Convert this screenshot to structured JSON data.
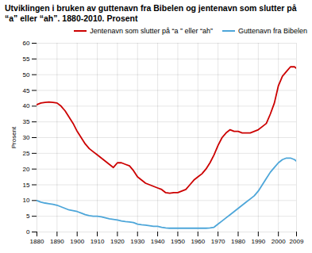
{
  "chart_data": {
    "type": "line",
    "title": "Utviklingen i bruken av guttenavn fra Bibelen og jentenavn som slutter på “a” eller “ah”. 1880-2010. Prosent",
    "y_label": "Prosent",
    "x": [
      1880,
      1882,
      1884,
      1886,
      1888,
      1890,
      1892,
      1894,
      1896,
      1898,
      1900,
      1902,
      1904,
      1906,
      1908,
      1910,
      1912,
      1914,
      1916,
      1918,
      1920,
      1922,
      1924,
      1926,
      1928,
      1930,
      1932,
      1934,
      1936,
      1938,
      1940,
      1942,
      1944,
      1946,
      1948,
      1950,
      1952,
      1954,
      1956,
      1958,
      1960,
      1962,
      1964,
      1966,
      1968,
      1970,
      1972,
      1974,
      1976,
      1978,
      1980,
      1982,
      1984,
      1986,
      1988,
      1990,
      1992,
      1994,
      1996,
      1998,
      2000,
      2002,
      2004,
      2006,
      2008,
      2009
    ],
    "series": [
      {
        "name": "Jentenavn som slutter på “a ” eller “ah”",
        "color": "#cc0000",
        "values": [
          40.5,
          41.0,
          41.2,
          41.3,
          41.2,
          41.0,
          40.0,
          38.5,
          36.5,
          34.5,
          32.0,
          30.0,
          28.0,
          26.5,
          25.5,
          24.5,
          23.5,
          22.5,
          21.5,
          20.5,
          22.0,
          22.0,
          21.5,
          21.0,
          19.5,
          17.5,
          16.5,
          15.5,
          15.0,
          14.5,
          14.0,
          13.5,
          12.5,
          12.3,
          12.5,
          12.5,
          13.0,
          13.5,
          15.0,
          16.5,
          17.5,
          18.5,
          20.0,
          22.0,
          24.5,
          27.5,
          30.0,
          31.5,
          32.5,
          32.0,
          32.0,
          31.5,
          31.5,
          31.5,
          32.0,
          32.5,
          33.5,
          34.5,
          37.5,
          41.0,
          46.5,
          49.5,
          51.0,
          52.5,
          52.5,
          52.0
        ]
      },
      {
        "name": "Guttenavn fra Bibelen",
        "color": "#4da6d9",
        "values": [
          10.0,
          9.5,
          9.2,
          9.0,
          8.8,
          8.5,
          8.0,
          7.5,
          7.0,
          6.8,
          6.5,
          6.0,
          5.5,
          5.2,
          5.0,
          5.0,
          4.8,
          4.5,
          4.2,
          4.0,
          3.8,
          3.5,
          3.3,
          3.2,
          3.0,
          2.5,
          2.3,
          2.2,
          2.0,
          1.8,
          1.8,
          1.5,
          1.3,
          1.2,
          1.2,
          1.2,
          1.2,
          1.2,
          1.2,
          1.2,
          1.2,
          1.2,
          1.2,
          1.3,
          1.5,
          2.5,
          3.5,
          4.5,
          5.5,
          6.5,
          7.5,
          8.5,
          9.5,
          10.5,
          11.5,
          13.0,
          15.0,
          17.0,
          19.0,
          20.5,
          22.0,
          23.0,
          23.5,
          23.5,
          23.0,
          22.5
        ]
      }
    ],
    "xlim": [
      1880,
      2009
    ],
    "xticks": [
      1880,
      1890,
      1900,
      1910,
      1920,
      1930,
      1940,
      1950,
      1960,
      1970,
      1980,
      1990,
      2000,
      2009
    ],
    "ylim": [
      0,
      60
    ],
    "yticks": [
      0,
      5,
      10,
      15,
      20,
      25,
      30,
      35,
      40,
      45,
      50,
      55,
      60
    ],
    "grid": true,
    "legend": "upper right"
  }
}
